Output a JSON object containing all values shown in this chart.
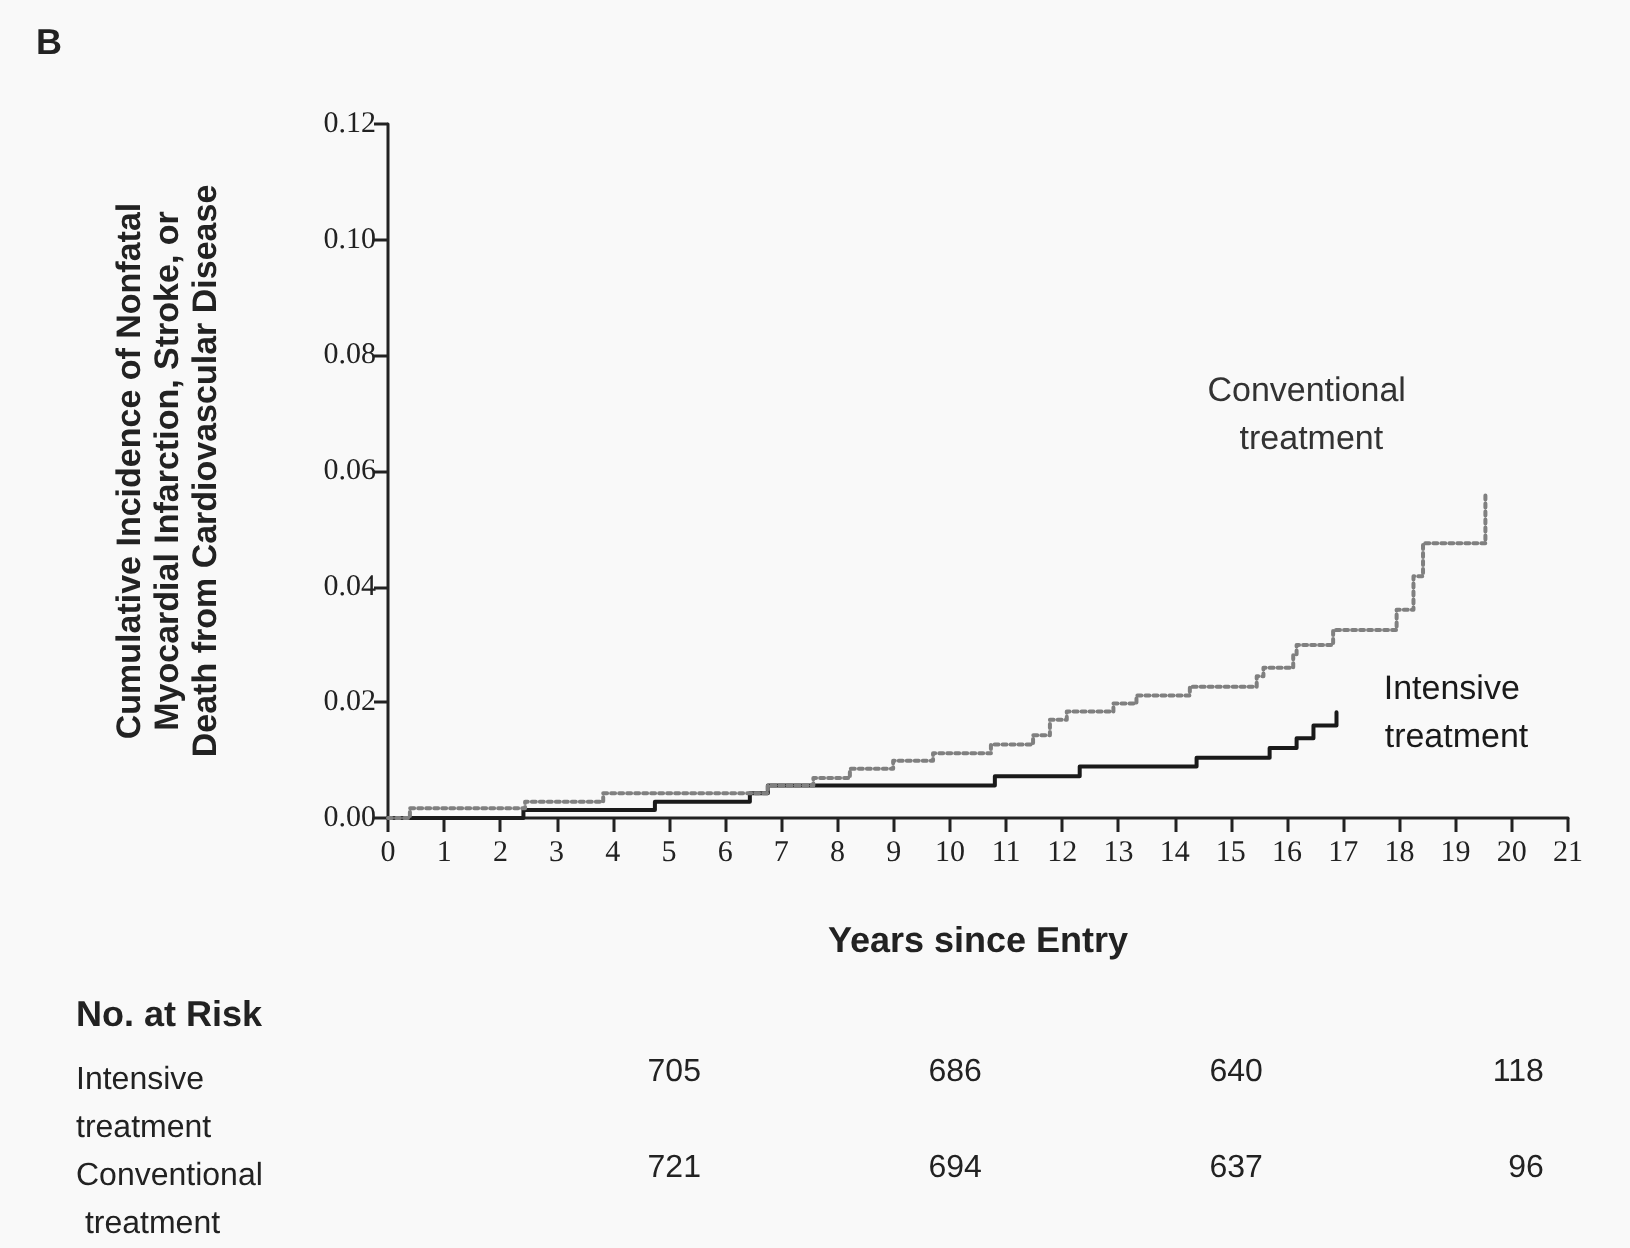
{
  "chart_data": {
    "type": "step",
    "xlabel": "Years since Entry",
    "ylabel": "Cumulative Incidence of Nonfatal\nMyocardial Infarction, Stroke, or\nDeath from Cardiovascular Disease",
    "annotations": [
      "B",
      "No. at Risk",
      "Intensive treatment",
      "705",
      "686",
      "640",
      "118",
      "Conventional treatment",
      "721",
      "694",
      "637",
      "96"
    ],
    "series": [
      {
        "name": "Intensive treatment",
        "color": "#1a1a1a",
        "line_style": "solid",
        "x": [
          0,
          2.41,
          4.75,
          6.44,
          6.76,
          10.8,
          12.31,
          14.39,
          15.69,
          16.17,
          16.47,
          16.88
        ],
        "values": [
          0,
          0.0014,
          0.0028,
          0.0043,
          0.0056,
          0.0072,
          0.0089,
          0.0104,
          0.0121,
          0.0138,
          0.016,
          0.0183
        ]
      },
      {
        "name": "Conventional treatment",
        "color": "#808080",
        "line_style": "dotted",
        "x": [
          0,
          0.39,
          2.44,
          3.83,
          6.76,
          7.57,
          8.22,
          8.99,
          9.7,
          10.73,
          11.48,
          11.78,
          12.08,
          12.91,
          13.32,
          14.27,
          15.46,
          15.58,
          16.11,
          16.17,
          16.82,
          17.95,
          18.25,
          18.42,
          19.53
        ],
        "values": [
          0,
          0.0017,
          0.0028,
          0.0043,
          0.0056,
          0.0069,
          0.0085,
          0.0099,
          0.0112,
          0.0127,
          0.0143,
          0.017,
          0.0184,
          0.0198,
          0.0212,
          0.0227,
          0.0245,
          0.026,
          0.0283,
          0.0299,
          0.0325,
          0.036,
          0.0418,
          0.0475,
          0.056
        ]
      }
    ],
    "xlim": [
      0,
      21
    ],
    "xticks": [
      0,
      1,
      2,
      3,
      4,
      5,
      6,
      7,
      8,
      9,
      10,
      11,
      12,
      13,
      14,
      15,
      16,
      17,
      18,
      19,
      20,
      21
    ],
    "ylim": [
      0,
      0.12
    ],
    "yticks": [
      {
        "value": 0,
        "label": "0.00"
      },
      {
        "value": 0.02,
        "label": "0.02"
      },
      {
        "value": 0.04,
        "label": "0.04"
      },
      {
        "value": 0.06,
        "label": "0.06"
      },
      {
        "value": 0.08,
        "label": "0.08"
      },
      {
        "value": 0.1,
        "label": "0.10"
      },
      {
        "value": 0.12,
        "label": "0.12"
      }
    ],
    "grid": false,
    "legend": false,
    "marker": "none"
  }
}
